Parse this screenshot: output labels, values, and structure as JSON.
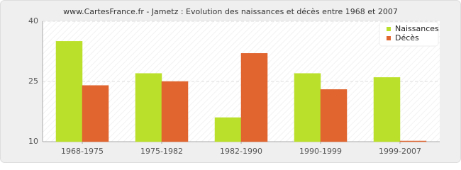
{
  "chart_data": {
    "type": "bar",
    "title": "www.CartesFrance.fr - Jametz : Evolution des naissances et décès entre 1968 et 2007",
    "categories": [
      "1968-1975",
      "1975-1982",
      "1982-1990",
      "1990-1999",
      "1999-2007"
    ],
    "series": [
      {
        "name": "Naissances",
        "color": "#bbe02c",
        "values": [
          35,
          27,
          16,
          27,
          26
        ]
      },
      {
        "name": "Décès",
        "color": "#e0652f",
        "values": [
          24,
          25,
          32,
          23,
          10
        ]
      }
    ],
    "ylim": [
      10,
      40
    ],
    "yticks": [
      10,
      25,
      40
    ],
    "grid": true,
    "legend": "top-right"
  }
}
